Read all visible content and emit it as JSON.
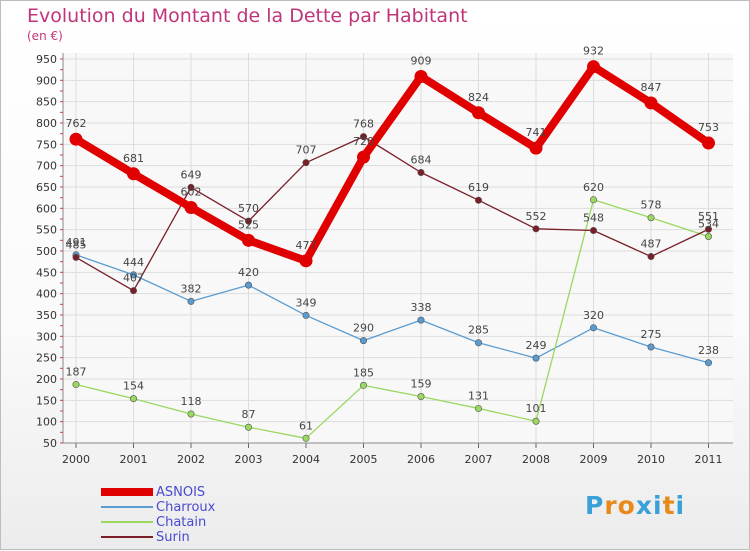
{
  "title": "Evolution du Montant de la Dette par Habitant",
  "unit": "(en €)",
  "logo": {
    "letters": [
      "P",
      "r",
      "o",
      "x",
      "i",
      "t",
      "i"
    ],
    "colors": [
      "#3aa0d8",
      "#e88a1a",
      "#e88a1a",
      "#3aa0d8",
      "#3aa0d8",
      "#e88a1a",
      "#3aa0d8"
    ]
  },
  "chart_data": {
    "type": "line",
    "title": "Evolution du Montant de la Dette par Habitant",
    "ylabel": "(en €)",
    "x": [
      "2000",
      "2001",
      "2002",
      "2003",
      "2004",
      "2005",
      "2006",
      "2007",
      "2008",
      "2009",
      "2010",
      "2011"
    ],
    "ylim": [
      50,
      950
    ],
    "yticks": [
      50,
      100,
      150,
      200,
      250,
      300,
      350,
      400,
      450,
      500,
      550,
      600,
      650,
      700,
      750,
      800,
      850,
      900,
      950
    ],
    "grid": true,
    "legend": "bottom-left",
    "series": [
      {
        "name": "ASNOIS",
        "color": "#e00000",
        "values": [
          762,
          681,
          602,
          525,
          477,
          720,
          909,
          824,
          741,
          932,
          847,
          753
        ]
      },
      {
        "name": "Charroux",
        "color": "#5a9bd0",
        "values": [
          491,
          444,
          382,
          420,
          349,
          290,
          338,
          285,
          249,
          320,
          275,
          238
        ]
      },
      {
        "name": "Chatain",
        "color": "#9ad860",
        "values": [
          187,
          154,
          118,
          87,
          61,
          185,
          159,
          131,
          101,
          620,
          578,
          534
        ]
      },
      {
        "name": "Surin",
        "color": "#7a1e28",
        "values": [
          485,
          407,
          649,
          570,
          707,
          768,
          684,
          619,
          552,
          548,
          487,
          551
        ]
      }
    ]
  }
}
